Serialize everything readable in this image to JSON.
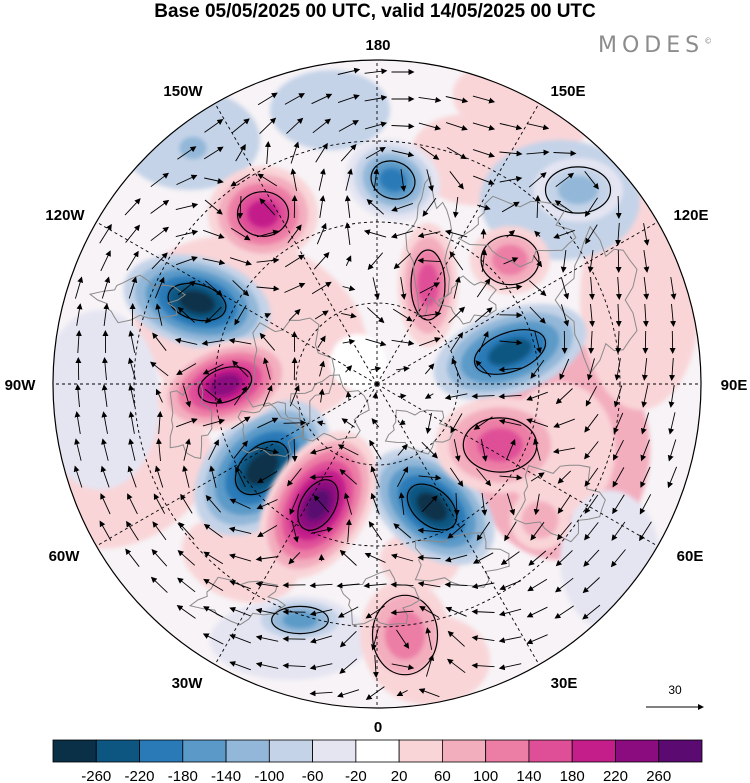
{
  "title": "Base 05/05/2025 00 UTC, valid 14/05/2025 00 UTC",
  "logo": {
    "text": "MODES",
    "mark": "©"
  },
  "longitude_labels": {
    "top": "180",
    "bottom": "0",
    "left": "90W",
    "right": "90E",
    "upper_left_150": "150W",
    "upper_left_120": "120W",
    "upper_right_150": "150E",
    "upper_right_120": "120E",
    "lower_left_60": "60W",
    "lower_left_30": "30W",
    "lower_right_60": "60E",
    "lower_right_30": "30E"
  },
  "reference_vector": {
    "value": "30",
    "icon": "arrow-right-icon"
  },
  "colorbar": {
    "labels": [
      "-260",
      "-220",
      "-180",
      "-140",
      "-100",
      "-60",
      "-20",
      "20",
      "60",
      "100",
      "140",
      "180",
      "220",
      "260"
    ],
    "colors": [
      "#0a3048",
      "#0e5682",
      "#2a7ab8",
      "#5b9ac8",
      "#93b7d8",
      "#c4d3e8",
      "#e5e5f2",
      "#ffffff",
      "#f9d5d8",
      "#f3aebe",
      "#ec7ea5",
      "#df4f98",
      "#c31e8a",
      "#8b0c7f",
      "#5a0a70"
    ]
  },
  "map": {
    "projection": "polar stereographic",
    "hemisphere": "north",
    "field": "anomaly",
    "vectors": "wind"
  }
}
